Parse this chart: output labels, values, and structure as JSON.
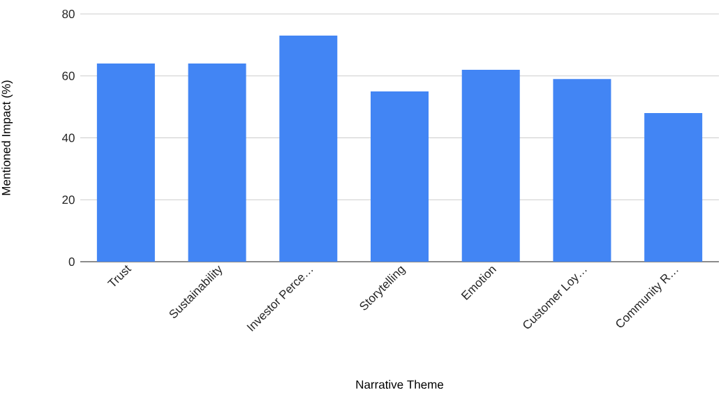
{
  "chart_data": {
    "type": "bar",
    "xlabel": "Narrative Theme",
    "ylabel": "Mentioned Impact (%)",
    "categories": [
      "Trust",
      "Sustainability",
      "Investor Perce…",
      "Storytelling",
      "Emotion",
      "Customer Loy…",
      "Community R…"
    ],
    "values": [
      64,
      64,
      73,
      55,
      62,
      59,
      48
    ],
    "color": "#4285f4",
    "ylim": [
      0,
      80
    ],
    "yticks": [
      0,
      20,
      40,
      60,
      80
    ],
    "grid": "y"
  }
}
